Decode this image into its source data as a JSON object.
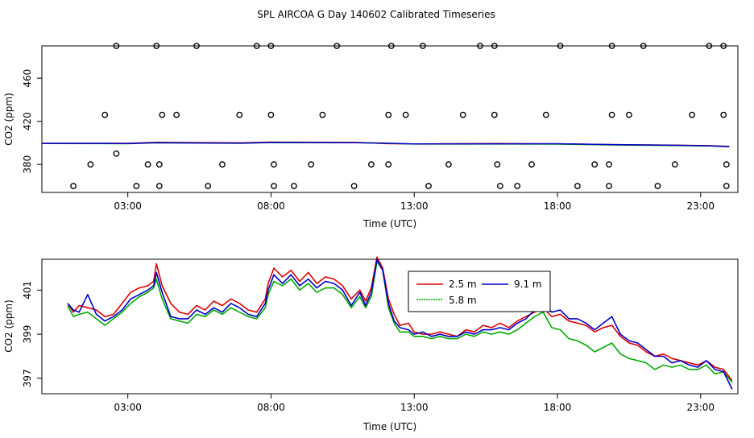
{
  "chart_data": [
    {
      "type": "scatter",
      "title": "SPL AIRCOA G  Day 140602  Calibrated Timeseries",
      "xlabel": "Time (UTC)",
      "ylabel": "CO2 (ppm)",
      "x_unit": "hours UTC",
      "xlim": [
        0,
        24.3
      ],
      "ylim": [
        354,
        490
      ],
      "xticks": [
        {
          "v": 3,
          "label": "03:00"
        },
        {
          "v": 8,
          "label": "08:00"
        },
        {
          "v": 13,
          "label": "13:00"
        },
        {
          "v": 18,
          "label": "18:00"
        },
        {
          "v": 23,
          "label": "23:00"
        }
      ],
      "yticks": [
        {
          "v": 380,
          "label": "380"
        },
        {
          "v": 420,
          "label": "420"
        },
        {
          "v": 460,
          "label": "460"
        }
      ],
      "points": [
        [
          1.1,
          360
        ],
        [
          1.7,
          380
        ],
        [
          2.2,
          426
        ],
        [
          2.6,
          390
        ],
        [
          3.3,
          360
        ],
        [
          3.7,
          380
        ],
        [
          4.1,
          360
        ],
        [
          4.1,
          380
        ],
        [
          4.2,
          426
        ],
        [
          4.0,
          490
        ],
        [
          4.7,
          426
        ],
        [
          2.6,
          490
        ],
        [
          5.4,
          490
        ],
        [
          5.8,
          360
        ],
        [
          6.3,
          380
        ],
        [
          6.9,
          426
        ],
        [
          7.5,
          490
        ],
        [
          8.0,
          490
        ],
        [
          8.0,
          426
        ],
        [
          8.1,
          380
        ],
        [
          8.1,
          360
        ],
        [
          8.8,
          360
        ],
        [
          9.4,
          380
        ],
        [
          9.8,
          426
        ],
        [
          10.3,
          490
        ],
        [
          10.9,
          360
        ],
        [
          11.5,
          380
        ],
        [
          12.1,
          380
        ],
        [
          12.1,
          426
        ],
        [
          12.2,
          490
        ],
        [
          12.7,
          426
        ],
        [
          13.3,
          490
        ],
        [
          13.5,
          360
        ],
        [
          14.2,
          380
        ],
        [
          14.7,
          426
        ],
        [
          15.3,
          490
        ],
        [
          15.8,
          490
        ],
        [
          15.8,
          426
        ],
        [
          15.9,
          380
        ],
        [
          16.0,
          360
        ],
        [
          16.6,
          360
        ],
        [
          17.1,
          380
        ],
        [
          17.6,
          426
        ],
        [
          18.1,
          490
        ],
        [
          18.7,
          360
        ],
        [
          19.3,
          380
        ],
        [
          19.8,
          360
        ],
        [
          19.8,
          380
        ],
        [
          19.9,
          426
        ],
        [
          19.9,
          490
        ],
        [
          20.5,
          426
        ],
        [
          21.0,
          490
        ],
        [
          21.5,
          360
        ],
        [
          22.1,
          380
        ],
        [
          22.7,
          426
        ],
        [
          23.3,
          490
        ],
        [
          23.8,
          490
        ],
        [
          23.8,
          426
        ],
        [
          23.9,
          380
        ],
        [
          23.9,
          360
        ]
      ],
      "lines": [
        {
          "color": "#dd0000",
          "values": [
            [
              0,
              399.6
            ],
            [
              3,
              399.6
            ],
            [
              4,
              400.5
            ],
            [
              7,
              400.0
            ],
            [
              8,
              400.7
            ],
            [
              11,
              400.4
            ],
            [
              12,
              399.3
            ],
            [
              13,
              399.0
            ],
            [
              16,
              399.4
            ],
            [
              18,
              399.0
            ],
            [
              20,
              398.4
            ],
            [
              22,
              397.9
            ],
            [
              23.3,
              397.4
            ],
            [
              24,
              396.8
            ]
          ]
        },
        {
          "color": "#00aa00",
          "values": [
            [
              0,
              399.4
            ],
            [
              3,
              399.2
            ],
            [
              4,
              400.0
            ],
            [
              7,
              399.6
            ],
            [
              8,
              400.3
            ],
            [
              11,
              400.1
            ],
            [
              12,
              399.6
            ],
            [
              13,
              398.9
            ],
            [
              16,
              398.9
            ],
            [
              18,
              398.8
            ],
            [
              20,
              398.0
            ],
            [
              22,
              397.6
            ],
            [
              23.3,
              397.2
            ],
            [
              24,
              396.6
            ]
          ]
        },
        {
          "color": "#0000cc",
          "values": [
            [
              0,
              399.5
            ],
            [
              3,
              399.4
            ],
            [
              4,
              400.1
            ],
            [
              7,
              399.7
            ],
            [
              8,
              400.4
            ],
            [
              11,
              400.2
            ],
            [
              12,
              399.8
            ],
            [
              13,
              399.0
            ],
            [
              16,
              399.1
            ],
            [
              18,
              399.2
            ],
            [
              20,
              398.4
            ],
            [
              22,
              397.8
            ],
            [
              23.3,
              397.3
            ],
            [
              24,
              396.4
            ]
          ]
        }
      ]
    },
    {
      "type": "line",
      "title": "",
      "xlabel": "Time (UTC)",
      "ylabel": "CO2 (ppm)",
      "x_unit": "hours UTC",
      "xlim": [
        0,
        24.3
      ],
      "ylim": [
        396.3,
        402.4
      ],
      "xticks": [
        {
          "v": 3,
          "label": "03:00"
        },
        {
          "v": 8,
          "label": "08:00"
        },
        {
          "v": 13,
          "label": "13:00"
        },
        {
          "v": 18,
          "label": "18:00"
        },
        {
          "v": 23,
          "label": "23:00"
        }
      ],
      "yticks": [
        {
          "v": 397,
          "label": "397"
        },
        {
          "v": 399,
          "label": "399"
        },
        {
          "v": 401,
          "label": "401"
        }
      ],
      "legend_position": "top-center",
      "series": [
        {
          "name": "2.5 m",
          "color": "#dd0000",
          "x": [
            0.9,
            1.1,
            1.3,
            1.6,
            1.9,
            2.2,
            2.5,
            2.8,
            3.1,
            3.4,
            3.7,
            3.9,
            4.0,
            4.2,
            4.5,
            4.8,
            5.1,
            5.4,
            5.7,
            6.0,
            6.3,
            6.6,
            6.9,
            7.2,
            7.5,
            7.8,
            7.9,
            8.1,
            8.4,
            8.7,
            9.0,
            9.3,
            9.6,
            9.9,
            10.2,
            10.5,
            10.8,
            11.1,
            11.3,
            11.5,
            11.7,
            11.9,
            12.1,
            12.3,
            12.5,
            12.8,
            13.0,
            13.3,
            13.6,
            13.9,
            14.2,
            14.5,
            14.8,
            15.1,
            15.4,
            15.7,
            16.0,
            16.3,
            16.6,
            16.9,
            17.2,
            17.5,
            17.8,
            18.1,
            18.4,
            18.7,
            19.0,
            19.3,
            19.6,
            19.9,
            20.2,
            20.5,
            20.8,
            21.1,
            21.4,
            21.7,
            22.0,
            22.3,
            22.6,
            22.9,
            23.2,
            23.5,
            23.8,
            24.1
          ],
          "values": [
            400.4,
            400.0,
            400.3,
            400.2,
            400.1,
            399.8,
            399.9,
            400.4,
            400.9,
            401.1,
            401.2,
            401.4,
            402.2,
            401.2,
            400.4,
            400.0,
            399.9,
            400.3,
            400.1,
            400.5,
            400.3,
            400.6,
            400.4,
            400.1,
            400.0,
            400.6,
            401.3,
            402.0,
            401.6,
            401.9,
            401.4,
            401.8,
            401.3,
            401.6,
            401.5,
            401.2,
            400.6,
            401.0,
            400.5,
            401.1,
            402.5,
            402.0,
            400.6,
            399.9,
            399.4,
            399.5,
            399.1,
            399.0,
            399.0,
            399.1,
            399.0,
            398.9,
            399.2,
            399.1,
            399.4,
            399.3,
            399.5,
            399.3,
            399.6,
            399.8,
            400.0,
            400.2,
            399.8,
            399.9,
            399.6,
            399.5,
            399.4,
            399.1,
            399.3,
            399.4,
            398.9,
            398.6,
            398.5,
            398.2,
            398.0,
            398.1,
            397.9,
            397.8,
            397.7,
            397.6,
            397.8,
            397.5,
            397.4,
            396.9
          ]
        },
        {
          "name": "5.8 m",
          "color": "#00aa00",
          "x": [
            0.9,
            1.1,
            1.3,
            1.6,
            1.9,
            2.2,
            2.5,
            2.8,
            3.1,
            3.4,
            3.7,
            3.9,
            4.0,
            4.2,
            4.5,
            4.8,
            5.1,
            5.4,
            5.7,
            6.0,
            6.3,
            6.6,
            6.9,
            7.2,
            7.5,
            7.8,
            7.9,
            8.1,
            8.4,
            8.7,
            9.0,
            9.3,
            9.6,
            9.9,
            10.2,
            10.5,
            10.8,
            11.1,
            11.3,
            11.5,
            11.7,
            11.9,
            12.1,
            12.3,
            12.5,
            12.8,
            13.0,
            13.3,
            13.6,
            13.9,
            14.2,
            14.5,
            14.8,
            15.1,
            15.4,
            15.7,
            16.0,
            16.3,
            16.6,
            16.9,
            17.2,
            17.5,
            17.8,
            18.1,
            18.4,
            18.7,
            19.0,
            19.3,
            19.6,
            19.9,
            20.2,
            20.5,
            20.8,
            21.1,
            21.4,
            21.7,
            22.0,
            22.3,
            22.6,
            22.9,
            23.2,
            23.5,
            23.8,
            24.1
          ],
          "values": [
            400.3,
            399.8,
            399.9,
            400.0,
            399.7,
            399.4,
            399.7,
            400.0,
            400.4,
            400.7,
            400.9,
            401.1,
            401.5,
            400.6,
            399.7,
            399.6,
            399.5,
            399.9,
            399.8,
            400.1,
            399.9,
            400.2,
            400.0,
            399.8,
            399.7,
            400.2,
            400.8,
            401.4,
            401.2,
            401.5,
            401.0,
            401.3,
            400.9,
            401.1,
            401.1,
            400.8,
            400.2,
            400.7,
            400.2,
            400.7,
            402.3,
            401.9,
            400.2,
            399.5,
            399.1,
            399.1,
            398.9,
            398.9,
            398.8,
            398.9,
            398.8,
            398.8,
            399.0,
            398.9,
            399.1,
            399.0,
            399.1,
            399.0,
            399.2,
            399.5,
            399.8,
            400.0,
            399.3,
            399.2,
            398.8,
            398.7,
            398.5,
            398.2,
            398.4,
            398.6,
            398.1,
            397.9,
            397.8,
            397.7,
            397.4,
            397.6,
            397.5,
            397.6,
            397.4,
            397.4,
            397.6,
            397.2,
            397.3,
            396.8
          ]
        },
        {
          "name": "9.1 m",
          "color": "#0000cc",
          "x": [
            0.9,
            1.1,
            1.3,
            1.6,
            1.9,
            2.2,
            2.5,
            2.8,
            3.1,
            3.4,
            3.7,
            3.9,
            4.0,
            4.2,
            4.5,
            4.8,
            5.1,
            5.4,
            5.7,
            6.0,
            6.3,
            6.6,
            6.9,
            7.2,
            7.5,
            7.8,
            7.9,
            8.1,
            8.4,
            8.7,
            9.0,
            9.3,
            9.6,
            9.9,
            10.2,
            10.5,
            10.8,
            11.1,
            11.3,
            11.5,
            11.7,
            11.9,
            12.1,
            12.3,
            12.5,
            12.8,
            13.0,
            13.3,
            13.6,
            13.9,
            14.2,
            14.5,
            14.8,
            15.1,
            15.4,
            15.7,
            16.0,
            16.3,
            16.6,
            16.9,
            17.2,
            17.5,
            17.8,
            18.1,
            18.4,
            18.7,
            19.0,
            19.3,
            19.6,
            19.9,
            20.2,
            20.5,
            20.8,
            21.1,
            21.4,
            21.7,
            22.0,
            22.3,
            22.6,
            22.9,
            23.2,
            23.5,
            23.8,
            24.1
          ],
          "values": [
            400.4,
            400.1,
            400.0,
            400.8,
            399.9,
            399.6,
            399.8,
            400.1,
            400.6,
            400.8,
            401.0,
            401.2,
            401.8,
            400.9,
            399.8,
            399.7,
            399.7,
            400.1,
            399.9,
            400.2,
            400.0,
            400.4,
            400.2,
            399.9,
            399.8,
            400.4,
            401.0,
            401.7,
            401.3,
            401.7,
            401.2,
            401.5,
            401.1,
            401.4,
            401.3,
            401.0,
            400.3,
            400.9,
            400.3,
            400.9,
            402.4,
            401.9,
            400.4,
            399.6,
            399.3,
            399.2,
            399.0,
            399.1,
            398.9,
            399.0,
            398.9,
            398.9,
            399.1,
            399.0,
            399.2,
            399.2,
            399.3,
            399.2,
            399.5,
            399.7,
            400.1,
            400.4,
            400.0,
            400.1,
            399.7,
            399.7,
            399.5,
            399.2,
            399.5,
            399.8,
            399.0,
            398.7,
            398.6,
            398.3,
            398.0,
            398.0,
            397.7,
            397.8,
            397.6,
            397.5,
            397.8,
            397.4,
            397.3,
            396.5
          ]
        }
      ]
    }
  ]
}
